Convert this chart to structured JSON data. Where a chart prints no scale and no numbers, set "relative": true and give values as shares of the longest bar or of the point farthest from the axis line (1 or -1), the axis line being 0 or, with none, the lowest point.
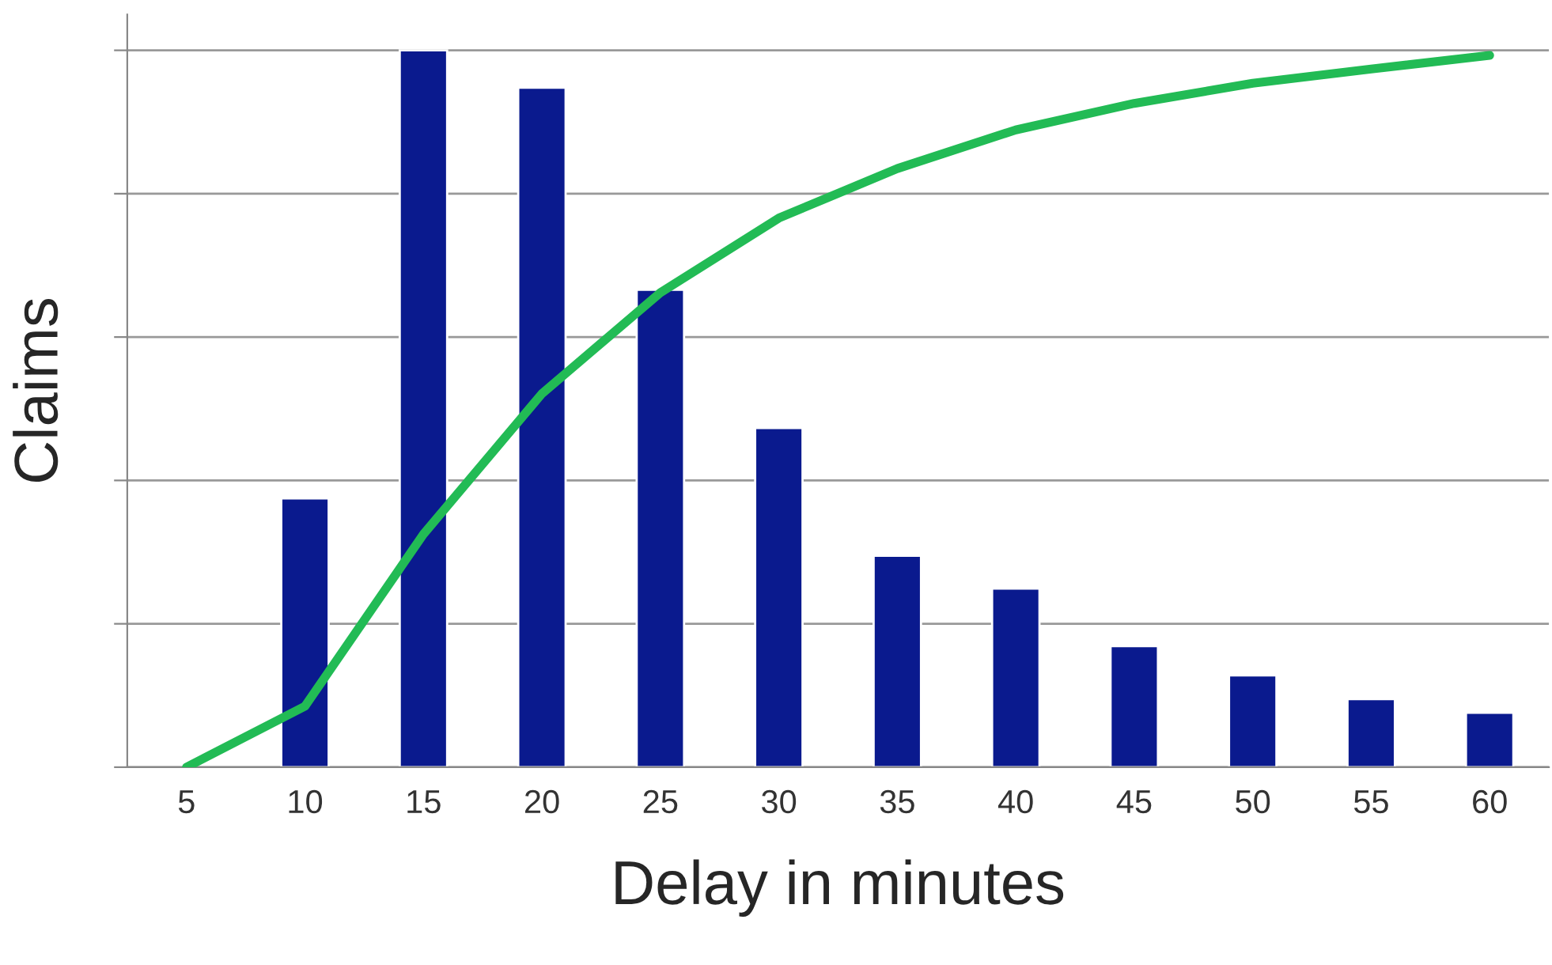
{
  "chart_data": {
    "type": "bar",
    "relative": true,
    "xlabel": "Delay in minutes",
    "ylabel": "Claims",
    "categories": [
      "5",
      "10",
      "15",
      "20",
      "25",
      "30",
      "35",
      "40",
      "45",
      "50",
      "55",
      "60"
    ],
    "series": [
      {
        "color": "#0a1a8e",
        "values": [
          null,
          0.375,
          1,
          0.948,
          0.666,
          0.473,
          0.295,
          0.249,
          0.169,
          0.128,
          0.095,
          0.076
        ]
      },
      {
        "type": "line",
        "color": "#22bb55",
        "values": [
          0,
          0.085,
          0.325,
          0.521,
          0.662,
          0.766,
          0.835,
          0.889,
          0.926,
          0.954,
          0.974,
          0.993
        ]
      }
    ],
    "grid": "y",
    "legend": false,
    "marker": "none",
    "line_style": "solid"
  }
}
